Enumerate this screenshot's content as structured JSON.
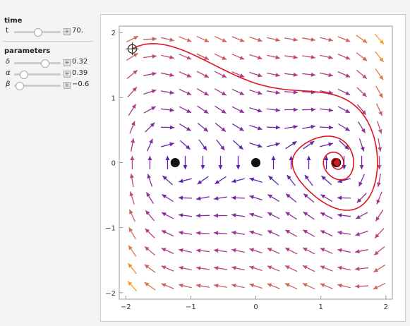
{
  "controls": {
    "time_heading": "time",
    "t": {
      "name": "t",
      "value": 70,
      "label": "70."
    },
    "parameters_heading": "parameters",
    "delta": {
      "name": "δ",
      "value": 0.32
    },
    "alpha": {
      "name": "α",
      "value": 0.39
    },
    "beta": {
      "name": "β",
      "value": -0.6,
      "label": "−0.6"
    }
  },
  "plot": {
    "xlim": [
      -2.1,
      2.1
    ],
    "ylim": [
      -2.1,
      2.1
    ],
    "xticks": [
      {
        "value": -2,
        "label": "−2"
      },
      {
        "value": -1,
        "label": "−1"
      },
      0,
      1,
      2
    ],
    "yticks": [
      {
        "value": -2,
        "label": "−2"
      },
      {
        "value": -1,
        "label": "−1"
      },
      0,
      1,
      2
    ],
    "locator": {
      "x": -1.9,
      "y": 1.75
    },
    "trajectory_color": "#e0141e"
  }
}
